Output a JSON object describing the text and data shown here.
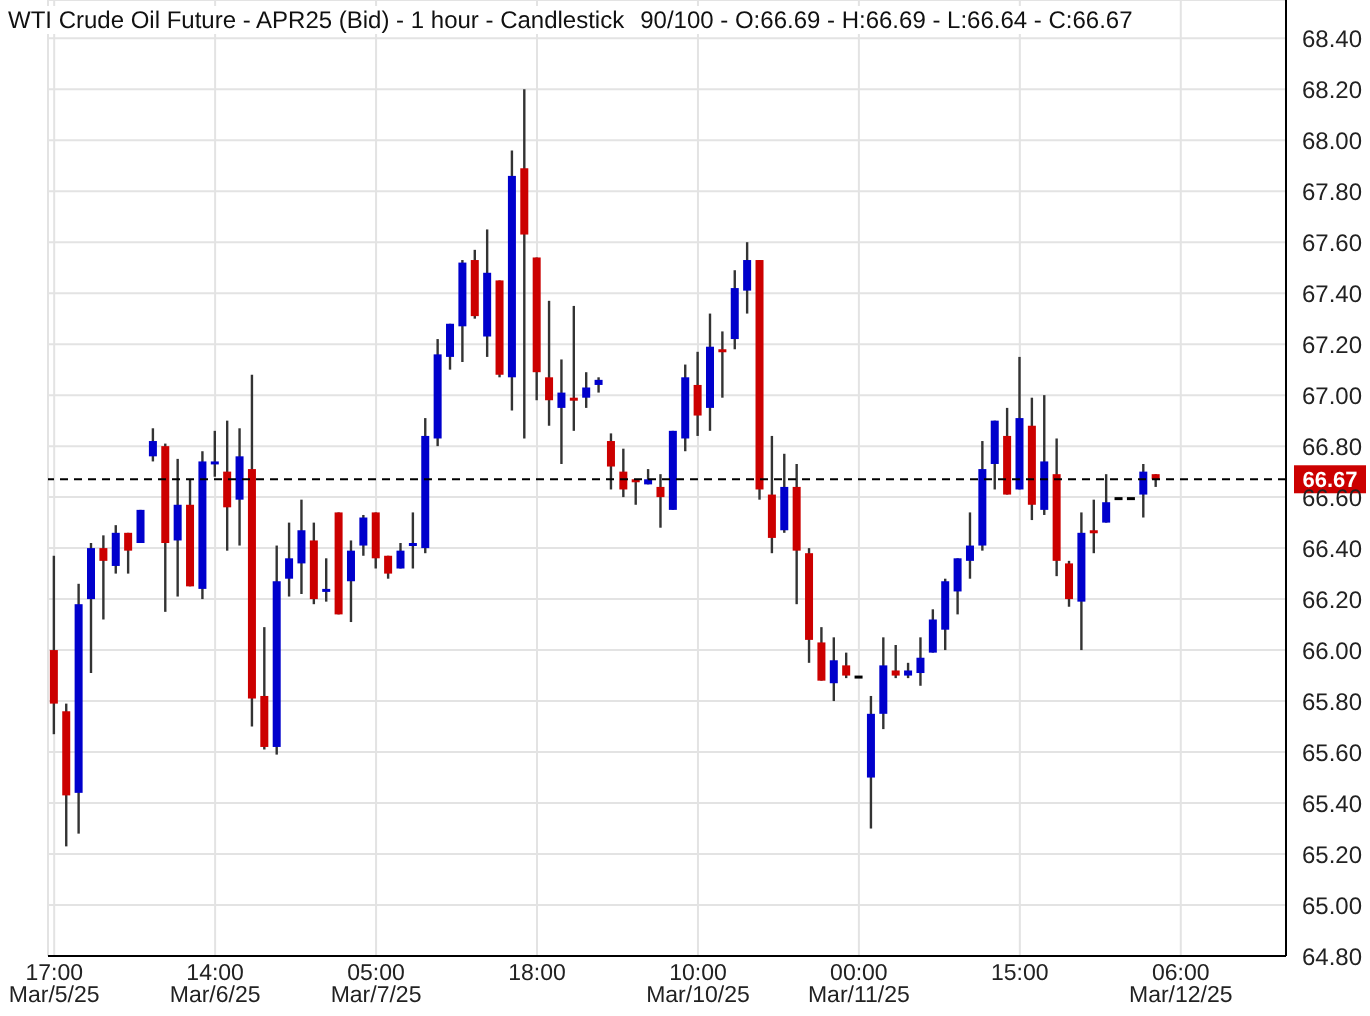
{
  "chart_data": {
    "type": "candlestick",
    "title": "WTI Crude Oil Future - APR25 (Bid) - 1 hour - Candlestick",
    "subtitle": "90/100 - O:66.69 - H:66.69 - L:66.64 - C:66.67",
    "categories": [
      "17:00\nMar/5/25",
      null,
      null,
      null,
      null,
      null,
      null,
      null,
      null,
      null,
      null,
      null,
      null,
      "14:00\nMar/6/25",
      null,
      null,
      null,
      null,
      null,
      null,
      null,
      null,
      null,
      null,
      null,
      null,
      "05:00\nMar/7/25",
      null,
      null,
      null,
      null,
      null,
      null,
      null,
      null,
      null,
      null,
      null,
      null,
      "18:00",
      null,
      null,
      null,
      null,
      null,
      null,
      null,
      null,
      null,
      null,
      null,
      null,
      "10:00\nMar/10/25",
      null,
      null,
      null,
      null,
      null,
      null,
      null,
      null,
      null,
      null,
      null,
      null,
      "00:00\nMar/11/25",
      null,
      null,
      null,
      null,
      null,
      null,
      null,
      null,
      null,
      null,
      null,
      null,
      "15:00",
      null,
      null,
      null,
      null,
      null,
      null,
      null,
      null,
      null,
      null,
      null,
      null,
      "06:00\nMar/12/25",
      null,
      null,
      null,
      null,
      null,
      null,
      null,
      null
    ],
    "ohlc": [
      [
        66.0,
        66.37,
        65.67,
        65.79
      ],
      [
        65.76,
        65.79,
        65.23,
        65.43
      ],
      [
        65.44,
        66.26,
        65.28,
        66.18
      ],
      [
        66.2,
        66.42,
        65.91,
        66.4
      ],
      [
        66.4,
        66.45,
        66.12,
        66.35
      ],
      [
        66.33,
        66.49,
        66.3,
        66.46
      ],
      [
        66.46,
        66.46,
        66.3,
        66.39
      ],
      [
        66.42,
        66.55,
        66.42,
        66.55
      ],
      [
        66.76,
        66.87,
        66.74,
        66.82
      ],
      [
        66.8,
        66.81,
        66.15,
        66.42
      ],
      [
        66.43,
        66.75,
        66.21,
        66.57
      ],
      [
        66.57,
        66.67,
        66.25,
        66.25
      ],
      [
        66.24,
        66.78,
        66.2,
        66.74
      ],
      [
        66.74,
        66.86,
        66.68,
        66.74
      ],
      [
        66.7,
        66.9,
        66.39,
        66.56
      ],
      [
        66.59,
        66.87,
        66.41,
        66.76
      ],
      [
        66.71,
        67.08,
        65.7,
        65.81
      ],
      [
        65.82,
        66.09,
        65.61,
        65.62
      ],
      [
        65.62,
        66.41,
        65.59,
        66.27
      ],
      [
        66.28,
        66.5,
        66.21,
        66.36
      ],
      [
        66.34,
        66.59,
        66.22,
        66.47
      ],
      [
        66.43,
        66.5,
        66.18,
        66.2
      ],
      [
        66.24,
        66.36,
        66.19,
        66.24
      ],
      [
        66.54,
        66.54,
        66.14,
        66.14
      ],
      [
        66.27,
        66.43,
        66.11,
        66.39
      ],
      [
        66.41,
        66.53,
        66.37,
        66.52
      ],
      [
        66.54,
        66.54,
        66.32,
        66.36
      ],
      [
        66.37,
        66.37,
        66.28,
        66.3
      ],
      [
        66.32,
        66.42,
        66.32,
        66.39
      ],
      [
        66.42,
        66.54,
        66.32,
        66.42
      ],
      [
        66.4,
        66.91,
        66.38,
        66.84
      ],
      [
        66.83,
        67.22,
        66.8,
        67.16
      ],
      [
        67.15,
        67.28,
        67.1,
        67.28
      ],
      [
        67.27,
        67.53,
        67.13,
        67.52
      ],
      [
        67.53,
        67.57,
        67.3,
        67.31
      ],
      [
        67.23,
        67.65,
        67.15,
        67.48
      ],
      [
        67.45,
        67.45,
        67.07,
        67.08
      ],
      [
        67.07,
        67.96,
        66.94,
        67.86
      ],
      [
        67.89,
        68.2,
        66.83,
        67.63
      ],
      [
        67.54,
        67.54,
        66.98,
        67.09
      ],
      [
        67.07,
        67.37,
        66.88,
        66.98
      ],
      [
        66.95,
        67.14,
        66.73,
        67.01
      ],
      [
        66.99,
        67.35,
        66.86,
        66.99
      ],
      [
        66.99,
        67.09,
        66.95,
        67.03
      ],
      [
        67.04,
        67.07,
        67.01,
        67.06
      ],
      [
        66.82,
        66.85,
        66.63,
        66.72
      ],
      [
        66.7,
        66.79,
        66.6,
        66.63
      ],
      [
        66.67,
        66.67,
        66.57,
        66.67
      ],
      [
        66.65,
        66.71,
        66.65,
        66.67
      ],
      [
        66.64,
        66.69,
        66.48,
        66.6
      ],
      [
        66.55,
        66.86,
        66.55,
        66.86
      ],
      [
        66.83,
        67.12,
        66.78,
        67.07
      ],
      [
        67.04,
        67.17,
        66.84,
        66.92
      ],
      [
        66.95,
        67.32,
        66.86,
        67.19
      ],
      [
        67.18,
        67.25,
        66.99,
        67.17
      ],
      [
        67.22,
        67.49,
        67.18,
        67.42
      ],
      [
        67.41,
        67.6,
        67.32,
        67.53
      ],
      [
        67.53,
        67.53,
        66.59,
        66.63
      ],
      [
        66.61,
        66.84,
        66.38,
        66.44
      ],
      [
        66.47,
        66.77,
        66.46,
        66.64
      ],
      [
        66.64,
        66.73,
        66.18,
        66.39
      ],
      [
        66.38,
        66.4,
        65.95,
        66.04
      ],
      [
        66.03,
        66.09,
        65.88,
        65.88
      ],
      [
        65.87,
        66.05,
        65.8,
        65.96
      ],
      [
        65.94,
        65.99,
        65.89,
        65.9
      ],
      [
        65.9,
        65.9,
        65.9,
        65.9
      ],
      [
        65.5,
        65.82,
        65.3,
        65.75
      ],
      [
        65.75,
        66.05,
        65.69,
        65.94
      ],
      [
        65.92,
        66.02,
        65.89,
        65.9
      ],
      [
        65.9,
        65.95,
        65.89,
        65.92
      ],
      [
        65.91,
        66.05,
        65.86,
        65.97
      ],
      [
        65.99,
        66.16,
        65.99,
        66.12
      ],
      [
        66.08,
        66.28,
        66.0,
        66.27
      ],
      [
        66.23,
        66.36,
        66.14,
        66.36
      ],
      [
        66.35,
        66.54,
        66.28,
        66.41
      ],
      [
        66.41,
        66.82,
        66.39,
        66.71
      ],
      [
        66.73,
        66.9,
        66.63,
        66.9
      ],
      [
        66.84,
        66.95,
        66.61,
        66.61
      ],
      [
        66.63,
        67.15,
        66.63,
        66.91
      ],
      [
        66.88,
        66.99,
        66.51,
        66.57
      ],
      [
        66.55,
        67.0,
        66.53,
        66.74
      ],
      [
        66.69,
        66.83,
        66.29,
        66.35
      ],
      [
        66.34,
        66.35,
        66.17,
        66.2
      ],
      [
        66.19,
        66.54,
        66.0,
        66.46
      ],
      [
        66.47,
        66.59,
        66.38,
        66.47
      ],
      [
        66.5,
        66.69,
        66.5,
        66.58
      ],
      [
        66.6,
        66.6,
        66.6,
        66.6
      ],
      [
        66.6,
        66.6,
        66.6,
        66.6
      ],
      [
        66.61,
        66.73,
        66.52,
        66.7
      ],
      [
        66.69,
        66.69,
        66.64,
        66.67
      ],
      null,
      null,
      null,
      null,
      null,
      null,
      null,
      null,
      null,
      null
    ],
    "colors": [
      "#cc0000",
      "#cc0000",
      "#0000cc",
      "#0000cc",
      "#cc0000",
      "#0000cc",
      "#cc0000",
      "#0000cc",
      "#0000cc",
      "#cc0000",
      "#0000cc",
      "#cc0000",
      "#0000cc",
      "#0000cc",
      "#cc0000",
      "#0000cc",
      "#cc0000",
      "#cc0000",
      "#0000cc",
      "#0000cc",
      "#0000cc",
      "#cc0000",
      "#0000cc",
      "#cc0000",
      "#0000cc",
      "#0000cc",
      "#cc0000",
      "#cc0000",
      "#0000cc",
      "#0000cc",
      "#0000cc",
      "#0000cc",
      "#0000cc",
      "#0000cc",
      "#cc0000",
      "#0000cc",
      "#cc0000",
      "#0000cc",
      "#cc0000",
      "#cc0000",
      "#cc0000",
      "#0000cc",
      "#cc0000",
      "#0000cc",
      "#0000cc",
      "#cc0000",
      "#cc0000",
      "#cc0000",
      "#0000cc",
      "#cc0000",
      "#0000cc",
      "#0000cc",
      "#cc0000",
      "#0000cc",
      "#cc0000",
      "#0000cc",
      "#0000cc",
      "#cc0000",
      "#cc0000",
      "#0000cc",
      "#cc0000",
      "#cc0000",
      "#cc0000",
      "#0000cc",
      "#cc0000",
      "#000000",
      "#0000cc",
      "#0000cc",
      "#cc0000",
      "#0000cc",
      "#0000cc",
      "#0000cc",
      "#0000cc",
      "#0000cc",
      "#0000cc",
      "#0000cc",
      "#0000cc",
      "#cc0000",
      "#0000cc",
      "#cc0000",
      "#0000cc",
      "#cc0000",
      "#cc0000",
      "#0000cc",
      "#cc0000",
      "#0000cc",
      "#000000",
      "#000000",
      "#0000cc",
      "#cc0000",
      null,
      null,
      null,
      null,
      null,
      null,
      null,
      null,
      null,
      null
    ],
    "ylim": [
      64.8,
      68.55
    ],
    "yticks": [
      {
        "value": 64.8,
        "label": "64.80"
      },
      {
        "value": 65.0,
        "label": "65.00"
      },
      {
        "value": 65.2,
        "label": "65.20"
      },
      {
        "value": 65.4,
        "label": "65.40"
      },
      {
        "value": 65.6,
        "label": "65.60"
      },
      {
        "value": 65.8,
        "label": "65.80"
      },
      {
        "value": 66.0,
        "label": "66.00"
      },
      {
        "value": 66.2,
        "label": "66.20"
      },
      {
        "value": 66.4,
        "label": "66.40"
      },
      {
        "value": 66.6,
        "label": "66.60"
      },
      {
        "value": 66.8,
        "label": "66.80"
      },
      {
        "value": 67.0,
        "label": "67.00"
      },
      {
        "value": 67.2,
        "label": "67.20"
      },
      {
        "value": 67.4,
        "label": "67.40"
      },
      {
        "value": 67.6,
        "label": "67.60"
      },
      {
        "value": 67.8,
        "label": "67.80"
      },
      {
        "value": 68.0,
        "label": "68.00"
      },
      {
        "value": 68.2,
        "label": "68.20"
      },
      {
        "value": 68.4,
        "label": "68.40"
      }
    ],
    "ref_lines": [
      {
        "axis": "y",
        "value": 66.67,
        "label": "66.67",
        "color": "#000000",
        "line_style": "dashed"
      }
    ],
    "grid": true
  }
}
